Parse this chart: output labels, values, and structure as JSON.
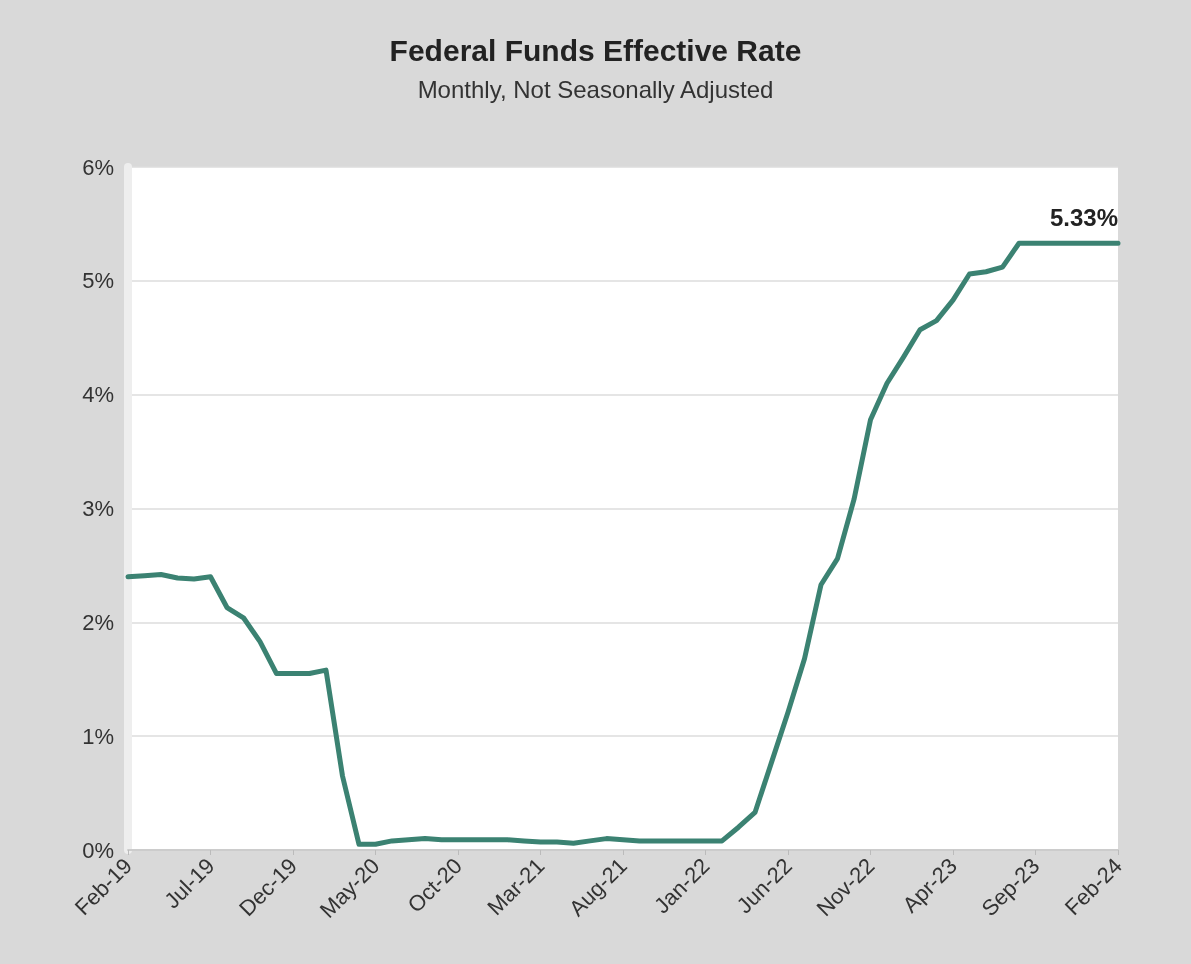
{
  "chart_data": {
    "type": "line",
    "title": "Federal Funds Effective Rate",
    "subtitle": "Monthly, Not Seasonally Adjusted",
    "categories": [
      "Feb-19",
      null,
      null,
      null,
      null,
      "Jul-19",
      null,
      null,
      null,
      null,
      "Dec-19",
      null,
      null,
      null,
      null,
      "May-20",
      null,
      null,
      null,
      null,
      "Oct-20",
      null,
      null,
      null,
      null,
      "Mar-21",
      null,
      null,
      null,
      null,
      "Aug-21",
      null,
      null,
      null,
      null,
      "Jan-22",
      null,
      null,
      null,
      null,
      "Jun-22",
      null,
      null,
      null,
      null,
      "Nov-22",
      null,
      null,
      null,
      null,
      "Apr-23",
      null,
      null,
      null,
      null,
      "Sep-23",
      null,
      null,
      null,
      null,
      "Feb-24"
    ],
    "series": [
      {
        "color": "#3b8272",
        "values": [
          2.4,
          2.41,
          2.42,
          2.39,
          2.38,
          2.4,
          2.13,
          2.04,
          1.83,
          1.55,
          1.55,
          1.55,
          1.58,
          0.65,
          0.05,
          0.05,
          0.08,
          0.09,
          0.1,
          0.09,
          0.09,
          0.09,
          0.09,
          0.09,
          0.08,
          0.07,
          0.07,
          0.06,
          0.08,
          0.1,
          0.09,
          0.08,
          0.08,
          0.08,
          0.08,
          0.08,
          0.08,
          0.2,
          0.33,
          0.77,
          1.21,
          1.68,
          2.33,
          2.56,
          3.08,
          3.78,
          4.1,
          4.33,
          4.57,
          4.65,
          4.83,
          5.06,
          5.08,
          5.12,
          5.33,
          5.33,
          5.33,
          5.33,
          5.33,
          5.33,
          5.33
        ]
      }
    ],
    "ylim": [
      0,
      6
    ],
    "yticks": [
      {
        "value": 0,
        "label": "0%"
      },
      {
        "value": 1,
        "label": "1%"
      },
      {
        "value": 2,
        "label": "2%"
      },
      {
        "value": 3,
        "label": "3%"
      },
      {
        "value": 4,
        "label": "4%"
      },
      {
        "value": 5,
        "label": "5%"
      },
      {
        "value": 6,
        "label": "6%"
      }
    ],
    "annotations": [
      {
        "text": "5.33%",
        "x": "Feb-24",
        "y": 5.33
      }
    ],
    "grid": "y",
    "marker": "none",
    "line_style": "solid"
  }
}
